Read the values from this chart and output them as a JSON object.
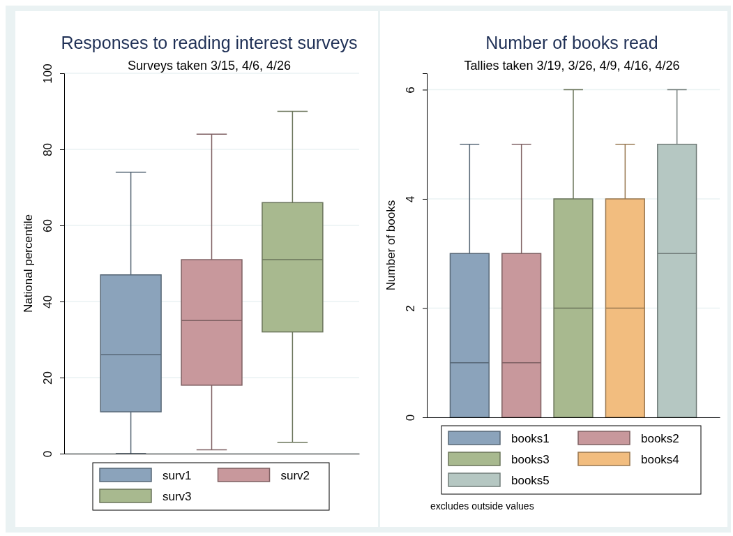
{
  "chart_data": [
    {
      "type": "box",
      "title": "Responses to reading interest surveys",
      "subtitle": "Surveys taken 3/15, 4/6, 4/26",
      "ylabel": "National percentile",
      "categories": [
        null
      ],
      "ylim": [
        0,
        100
      ],
      "yticks": [
        0,
        20,
        40,
        60,
        80,
        100
      ],
      "grid": "y",
      "legend": "bottom",
      "series": [
        {
          "name": "surv1",
          "color": "#8ba3bb",
          "boxes": [
            {
              "low": 0,
              "q1": 11,
              "median": 26,
              "q3": 47,
              "high": 74
            }
          ]
        },
        {
          "name": "surv2",
          "color": "#c8989c",
          "boxes": [
            {
              "low": 1,
              "q1": 18,
              "median": 35,
              "q3": 51,
              "high": 84
            }
          ]
        },
        {
          "name": "surv3",
          "color": "#a8b98f",
          "boxes": [
            {
              "low": 3,
              "q1": 32,
              "median": 51,
              "q3": 66,
              "high": 90
            }
          ]
        }
      ]
    },
    {
      "type": "box",
      "title": "Number of books read",
      "subtitle": "Tallies taken 3/19, 3/26, 4/9, 4/16, 4/26",
      "ylabel": "Number of books",
      "categories": [
        null
      ],
      "ylim": [
        0,
        6.3
      ],
      "yticks": [
        0,
        2,
        4,
        6
      ],
      "grid": "y",
      "legend": "bottom",
      "annotations": [
        "excludes outside values"
      ],
      "series": [
        {
          "name": "books1",
          "color": "#8ba3bb",
          "boxes": [
            {
              "low": 0,
              "q1": 0,
              "median": 1,
              "q3": 3,
              "high": 5
            }
          ]
        },
        {
          "name": "books2",
          "color": "#c8989c",
          "boxes": [
            {
              "low": 0,
              "q1": 0,
              "median": 1,
              "q3": 3,
              "high": 5
            }
          ]
        },
        {
          "name": "books3",
          "color": "#a8b98f",
          "boxes": [
            {
              "low": 0,
              "q1": 0,
              "median": 2,
              "q3": 4,
              "high": 6
            }
          ]
        },
        {
          "name": "books4",
          "color": "#f2bd7f",
          "boxes": [
            {
              "low": 0,
              "q1": 0,
              "median": 2,
              "q3": 4,
              "high": 5
            }
          ]
        },
        {
          "name": "books5",
          "color": "#b5c7c2",
          "boxes": [
            {
              "low": 0,
              "q1": 0,
              "median": 3,
              "q3": 5,
              "high": 6
            }
          ]
        }
      ]
    }
  ]
}
